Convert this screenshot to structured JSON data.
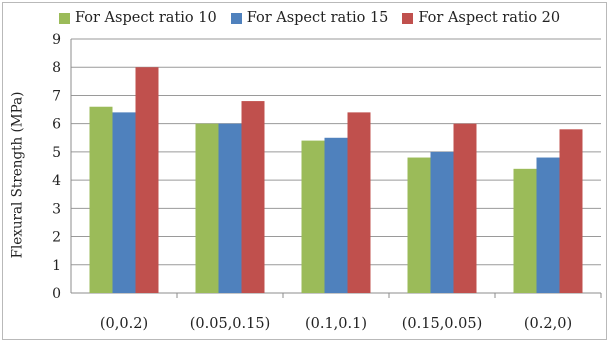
{
  "chart_data": {
    "type": "bar",
    "title": "",
    "xlabel": "",
    "ylabel": "Flexural Strength (MPa)",
    "categories": [
      "(0,0.2)",
      "(0.05,0.15)",
      "(0.1,0.1)",
      "(0.15,0.05)",
      "(0.2,0)"
    ],
    "series": [
      {
        "name": "For Aspect ratio 10",
        "color": "#9bbb59",
        "values": [
          6.6,
          6.0,
          5.4,
          4.8,
          4.4
        ]
      },
      {
        "name": "For Aspect ratio 15",
        "color": "#4f81bd",
        "values": [
          6.4,
          6.0,
          5.5,
          5.0,
          4.8
        ]
      },
      {
        "name": "For Aspect ratio 20",
        "color": "#c0504d",
        "values": [
          8.0,
          6.8,
          6.4,
          6.0,
          5.8
        ]
      }
    ],
    "ylim": [
      0,
      9
    ],
    "yticks": [
      0,
      1,
      2,
      3,
      4,
      5,
      6,
      7,
      8,
      9
    ],
    "grid": true,
    "legend_position": "top"
  }
}
